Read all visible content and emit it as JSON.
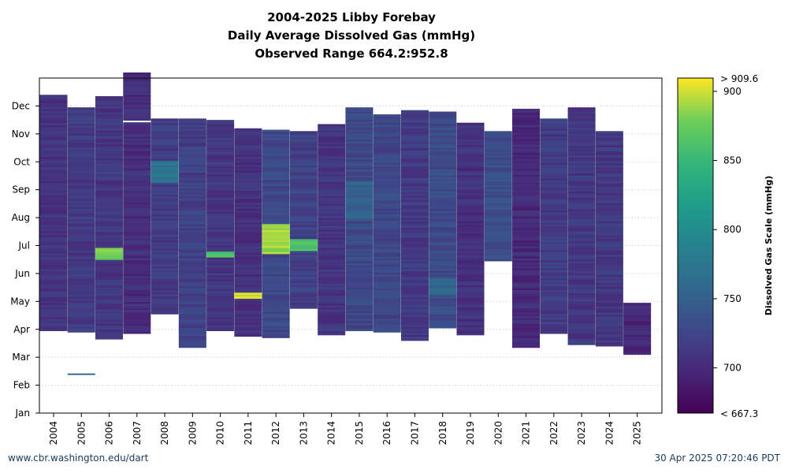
{
  "titles": {
    "line1": "2004-2025 Libby Forebay",
    "line2": "Daily Average Dissolved Gas (mmHg)",
    "line3": "Observed Range 664.2:952.8"
  },
  "footer": {
    "source": "www.cbr.washington.edu/dart",
    "timestamp": "30 Apr 2025 07:20:46 PDT"
  },
  "chart_data": {
    "type": "heatmap",
    "x_labels": [
      "2004",
      "2005",
      "2006",
      "2007",
      "2008",
      "2009",
      "2010",
      "2011",
      "2012",
      "2013",
      "2014",
      "2015",
      "2016",
      "2017",
      "2018",
      "2019",
      "2020",
      "2021",
      "2022",
      "2023",
      "2024",
      "2025"
    ],
    "y_labels": [
      "Jan",
      "Feb",
      "Mar",
      "Apr",
      "May",
      "Jun",
      "Jul",
      "Aug",
      "Sep",
      "Oct",
      "Nov",
      "Dec"
    ],
    "y_domain_months": [
      1,
      13
    ],
    "colorbar": {
      "label": "Dissolved Gas Scale (mmHg)",
      "min": 667.3,
      "max": 909.6,
      "ticks": [
        700,
        750,
        800,
        850,
        900
      ],
      "min_label": "< 667.3",
      "max_label": "> 909.6",
      "colormap": "viridis"
    },
    "coverage_start_month": [
      3.95,
      3.9,
      3.65,
      3.85,
      4.55,
      3.35,
      3.95,
      3.75,
      3.7,
      4.75,
      3.8,
      3.95,
      3.9,
      3.6,
      4.05,
      3.8,
      6.45,
      3.35,
      3.85,
      3.45,
      3.4,
      3.1
    ],
    "coverage_end_month": [
      12.4,
      11.95,
      12.35,
      13.2,
      11.55,
      11.55,
      11.5,
      11.2,
      11.15,
      11.1,
      11.35,
      11.95,
      11.7,
      11.85,
      11.8,
      11.4,
      11.1,
      11.9,
      11.55,
      11.95,
      11.1,
      4.95
    ],
    "typical_mmHg": [
      708,
      714,
      711,
      704,
      716,
      720,
      712,
      706,
      728,
      720,
      710,
      728,
      726,
      714,
      730,
      706,
      732,
      700,
      716,
      712,
      712,
      698
    ],
    "peak_events": [
      {
        "year": "2006",
        "from_month": 6.5,
        "to_month": 6.9,
        "mmHg": 880
      },
      {
        "year": "2010",
        "from_month": 6.6,
        "to_month": 6.8,
        "mmHg": 860
      },
      {
        "year": "2011",
        "from_month": 5.1,
        "to_month": 5.3,
        "mmHg": 900
      },
      {
        "year": "2012",
        "from_month": 6.7,
        "to_month": 7.8,
        "mmHg": 890
      },
      {
        "year": "2013",
        "from_month": 6.8,
        "to_month": 7.2,
        "mmHg": 860
      },
      {
        "year": "2008",
        "from_month": 9.3,
        "to_month": 10.0,
        "mmHg": 772
      },
      {
        "year": "2018",
        "from_month": 5.3,
        "to_month": 5.8,
        "mmHg": 758
      },
      {
        "year": "2015",
        "from_month": 8.0,
        "to_month": 9.3,
        "mmHg": 752
      }
    ],
    "gaps": [
      {
        "year": "2005",
        "from_month": 1.1,
        "to_month": 3.9,
        "note": "single reading near Feb"
      },
      {
        "year": "2007",
        "from_month": 11.35,
        "to_month": 11.55
      },
      {
        "year": "2020",
        "from_month": 3.0,
        "to_month": 6.45
      }
    ]
  }
}
